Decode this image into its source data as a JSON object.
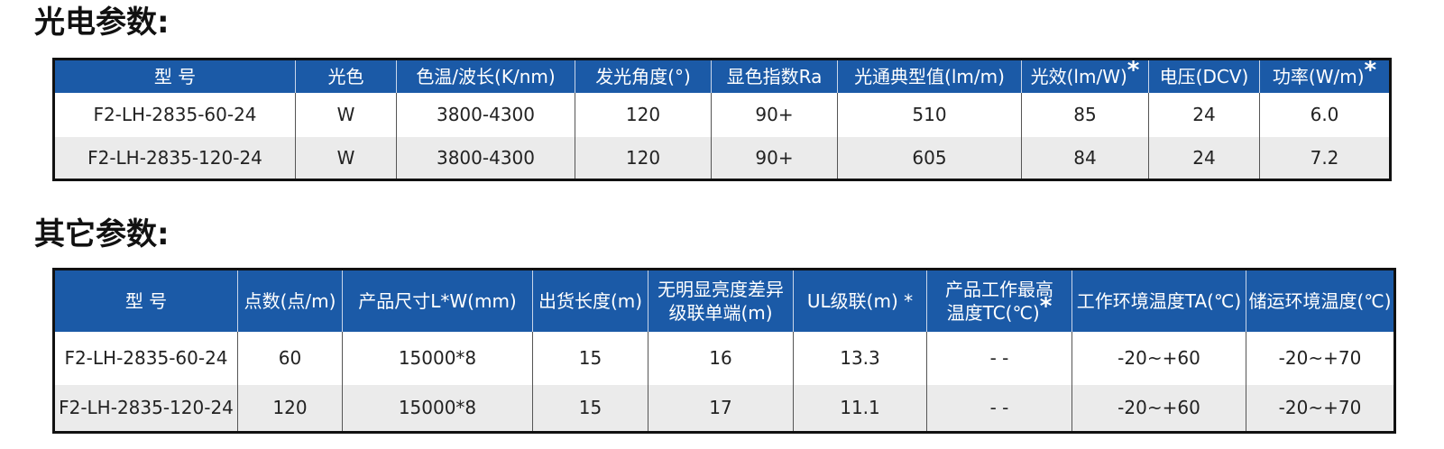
{
  "sections": [
    {
      "title": "光电参数:",
      "table": {
        "headers": [
          {
            "lines": [
              "型 号"
            ]
          },
          {
            "lines": [
              "光色"
            ]
          },
          {
            "lines": [
              "色温/波长(K/nm)"
            ]
          },
          {
            "lines": [
              "发光角度(°)"
            ]
          },
          {
            "lines": [
              "显色指数Ra"
            ]
          },
          {
            "lines": [
              "光通典型值(lm/m)"
            ]
          },
          {
            "lines": [
              "光效(lm/W)"
            ],
            "note": "*"
          },
          {
            "lines": [
              "电压(DCV)"
            ]
          },
          {
            "lines": [
              "功率(W/m)"
            ],
            "note": "*"
          }
        ],
        "rows": [
          [
            "F2-LH-2835-60-24",
            "W",
            "3800-4300",
            "120",
            "90+",
            "510",
            "85",
            "24",
            "6.0"
          ],
          [
            "F2-LH-2835-120-24",
            "W",
            "3800-4300",
            "120",
            "90+",
            "605",
            "84",
            "24",
            "7.2"
          ]
        ]
      }
    },
    {
      "title": "其它参数:",
      "table": {
        "headers": [
          {
            "lines": [
              "型 号"
            ]
          },
          {
            "lines": [
              "点数(点/m)"
            ]
          },
          {
            "lines": [
              "产品尺寸L*W(mm)"
            ]
          },
          {
            "lines": [
              "出货长度(m)"
            ]
          },
          {
            "lines": [
              "无明显亮度差异",
              "级联单端(m)"
            ]
          },
          {
            "lines": [
              "UL级联(m) *"
            ]
          },
          {
            "lines": [
              "产品工作最高",
              "温度TC(℃)"
            ],
            "note": "*"
          },
          {
            "lines": [
              "工作环境温度TA(℃)"
            ]
          },
          {
            "lines": [
              "储运环境温度(℃)"
            ]
          }
        ],
        "rows": [
          [
            "F2-LH-2835-60-24",
            "60",
            "15000*8",
            "15",
            "16",
            "13.3",
            "- -",
            "-20~+60",
            "-20~+70"
          ],
          [
            "F2-LH-2835-120-24",
            "120",
            "15000*8",
            "15",
            "17",
            "11.1",
            "- -",
            "-20~+60",
            "-20~+70"
          ]
        ]
      }
    }
  ]
}
